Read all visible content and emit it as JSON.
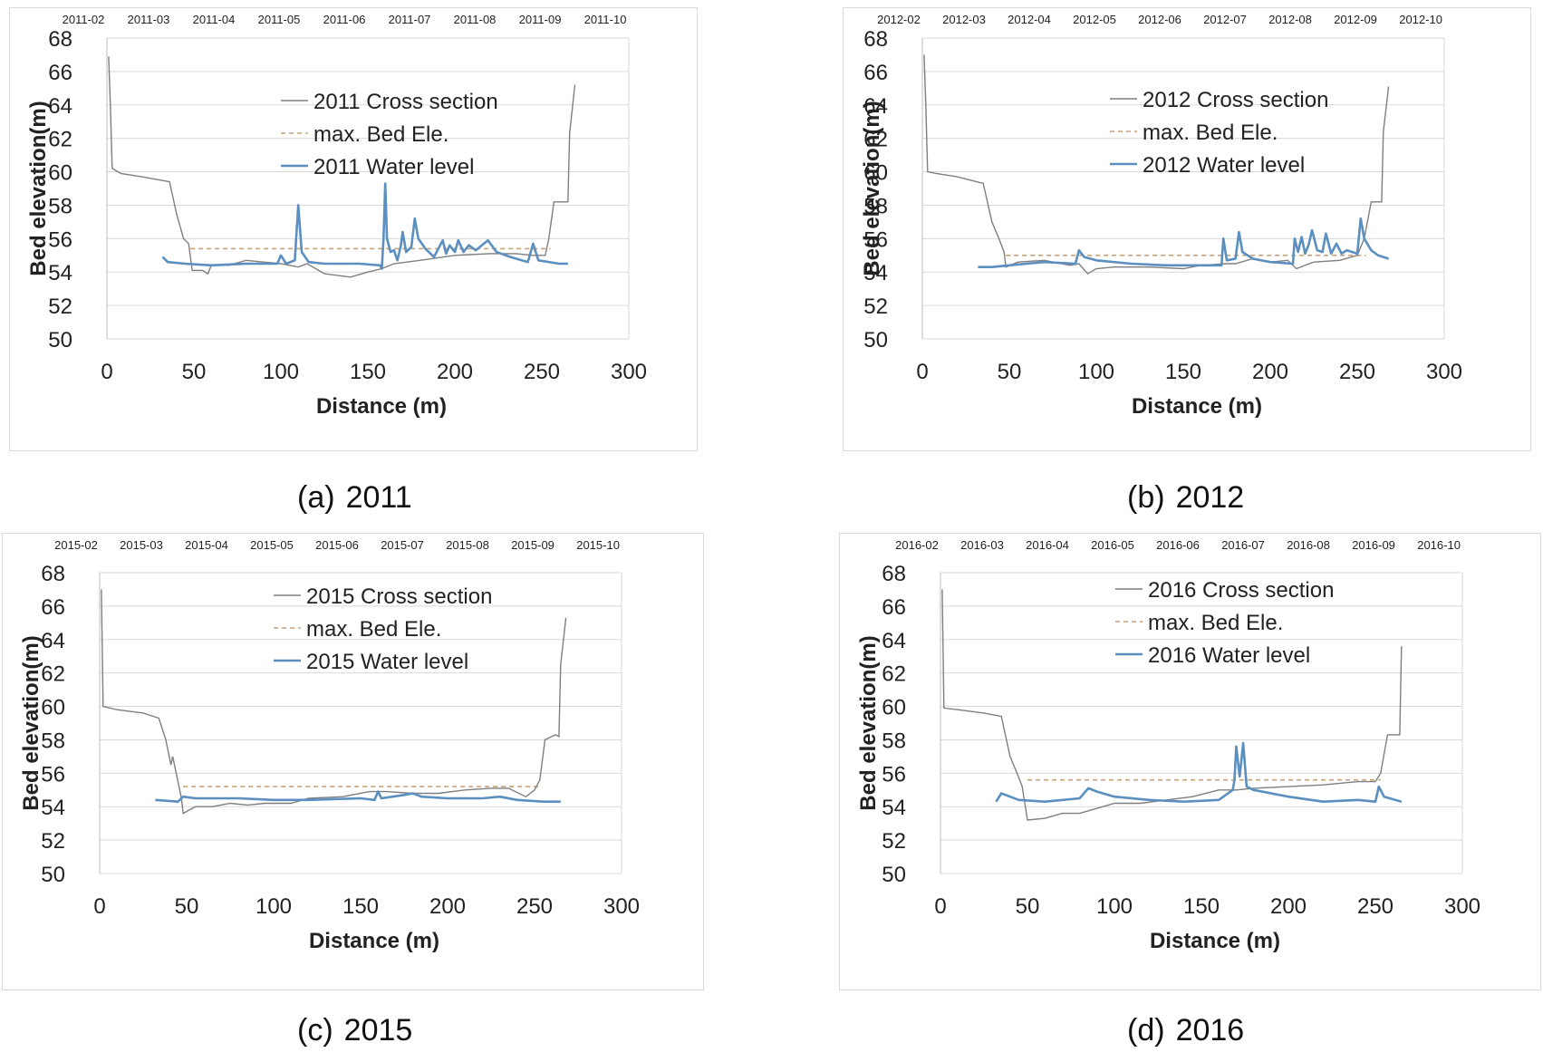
{
  "chart_data": [
    {
      "type": "line",
      "caption_tag": "(a)",
      "caption_year": "2011",
      "xlabel": "Distance (m)",
      "ylabel": "Bed elevation(m)",
      "xlim": [
        0,
        300
      ],
      "ylim": [
        50,
        68
      ],
      "xticks": [
        0,
        50,
        100,
        150,
        200,
        250,
        300
      ],
      "yticks": [
        50,
        52,
        54,
        56,
        58,
        60,
        62,
        64,
        66,
        68
      ],
      "top_axis_labels": [
        "2011-02",
        "2011-03",
        "2011-04",
        "2011-05",
        "2011-06",
        "2011-07",
        "2011-08",
        "2011-09",
        "2011-10"
      ],
      "legend": [
        "2011 Cross section",
        "max. Bed Ele.",
        "2011 Water level"
      ],
      "max_bed": {
        "y": 55.4,
        "x_start": 48,
        "x_end": 255
      },
      "cross_section": [
        [
          1,
          66.9
        ],
        [
          2,
          64
        ],
        [
          3,
          60.2
        ],
        [
          8,
          59.9
        ],
        [
          20,
          59.7
        ],
        [
          36,
          59.4
        ],
        [
          40,
          57.5
        ],
        [
          44,
          56
        ],
        [
          47,
          55.7
        ],
        [
          49,
          54.1
        ],
        [
          55,
          54.1
        ],
        [
          58,
          53.9
        ],
        [
          60,
          54.4
        ],
        [
          70,
          54.4
        ],
        [
          80,
          54.7
        ],
        [
          90,
          54.6
        ],
        [
          100,
          54.5
        ],
        [
          110,
          54.3
        ],
        [
          115,
          54.5
        ],
        [
          120,
          54.2
        ],
        [
          125,
          53.9
        ],
        [
          140,
          53.7
        ],
        [
          150,
          54
        ],
        [
          158,
          54.2
        ],
        [
          165,
          54.5
        ],
        [
          180,
          54.7
        ],
        [
          200,
          55
        ],
        [
          220,
          55.1
        ],
        [
          235,
          55.1
        ],
        [
          245,
          55
        ],
        [
          252,
          55
        ],
        [
          254,
          56
        ],
        [
          257,
          58.2
        ],
        [
          265,
          58.2
        ],
        [
          266,
          62.3
        ],
        [
          269,
          65.2
        ]
      ],
      "water_level": [
        [
          32,
          54.9
        ],
        [
          35,
          54.6
        ],
        [
          45,
          54.5
        ],
        [
          60,
          54.4
        ],
        [
          80,
          54.5
        ],
        [
          98,
          54.5
        ],
        [
          100,
          55
        ],
        [
          103,
          54.5
        ],
        [
          108,
          54.7
        ],
        [
          110,
          58
        ],
        [
          112,
          55.2
        ],
        [
          116,
          54.6
        ],
        [
          125,
          54.5
        ],
        [
          145,
          54.5
        ],
        [
          157,
          54.4
        ],
        [
          158,
          54.2
        ],
        [
          159,
          56
        ],
        [
          160,
          59.3
        ],
        [
          161,
          56
        ],
        [
          163,
          55.2
        ],
        [
          165,
          55.3
        ],
        [
          167,
          54.7
        ],
        [
          169,
          55.6
        ],
        [
          170,
          56.4
        ],
        [
          172,
          55.2
        ],
        [
          175,
          55.5
        ],
        [
          177,
          57.2
        ],
        [
          179,
          56
        ],
        [
          183,
          55.4
        ],
        [
          188,
          54.9
        ],
        [
          193,
          55.9
        ],
        [
          195,
          55.1
        ],
        [
          197,
          55.6
        ],
        [
          200,
          55.2
        ],
        [
          202,
          55.9
        ],
        [
          205,
          55.2
        ],
        [
          208,
          55.6
        ],
        [
          212,
          55.3
        ],
        [
          219,
          55.9
        ],
        [
          224,
          55.2
        ],
        [
          232,
          54.9
        ],
        [
          242,
          54.6
        ],
        [
          245,
          55.7
        ],
        [
          248,
          54.7
        ],
        [
          260,
          54.5
        ],
        [
          265,
          54.5
        ]
      ]
    },
    {
      "type": "line",
      "caption_tag": "(b)",
      "caption_year": "2012",
      "xlabel": "Distance (m)",
      "ylabel": "Bed elevation(m)",
      "xlim": [
        0,
        300
      ],
      "ylim": [
        50,
        68
      ],
      "xticks": [
        0,
        50,
        100,
        150,
        200,
        250,
        300
      ],
      "yticks": [
        50,
        52,
        54,
        56,
        58,
        60,
        62,
        64,
        66,
        68
      ],
      "top_axis_labels": [
        "2012-02",
        "2012-03",
        "2012-04",
        "2012-05",
        "2012-06",
        "2012-07",
        "2012-08",
        "2012-09",
        "2012-10"
      ],
      "legend": [
        "2012 Cross section",
        "max. Bed Ele.",
        "2012 Water level"
      ],
      "max_bed": {
        "y": 55,
        "x_start": 48,
        "x_end": 255
      },
      "cross_section": [
        [
          1,
          67
        ],
        [
          2,
          64
        ],
        [
          3,
          60
        ],
        [
          8,
          59.9
        ],
        [
          20,
          59.7
        ],
        [
          35,
          59.3
        ],
        [
          40,
          57
        ],
        [
          44,
          56
        ],
        [
          47,
          55.2
        ],
        [
          48,
          54.3
        ],
        [
          55,
          54.6
        ],
        [
          70,
          54.7
        ],
        [
          85,
          54.4
        ],
        [
          90,
          54.5
        ],
        [
          95,
          53.9
        ],
        [
          100,
          54.2
        ],
        [
          110,
          54.3
        ],
        [
          130,
          54.3
        ],
        [
          150,
          54.2
        ],
        [
          160,
          54.4
        ],
        [
          175,
          54.5
        ],
        [
          180,
          54.5
        ],
        [
          190,
          54.8
        ],
        [
          200,
          54.6
        ],
        [
          210,
          54.7
        ],
        [
          215,
          54.2
        ],
        [
          225,
          54.6
        ],
        [
          240,
          54.7
        ],
        [
          250,
          55
        ],
        [
          254,
          56
        ],
        [
          258,
          58.2
        ],
        [
          264,
          58.2
        ],
        [
          265,
          62.4
        ],
        [
          268,
          65.1
        ]
      ],
      "water_level": [
        [
          32,
          54.3
        ],
        [
          40,
          54.3
        ],
        [
          50,
          54.4
        ],
        [
          70,
          54.6
        ],
        [
          88,
          54.5
        ],
        [
          90,
          55.3
        ],
        [
          93,
          54.9
        ],
        [
          100,
          54.7
        ],
        [
          120,
          54.5
        ],
        [
          140,
          54.4
        ],
        [
          160,
          54.4
        ],
        [
          172,
          54.4
        ],
        [
          173,
          56
        ],
        [
          175,
          54.7
        ],
        [
          180,
          54.8
        ],
        [
          182,
          56.4
        ],
        [
          184,
          55.2
        ],
        [
          190,
          54.8
        ],
        [
          200,
          54.6
        ],
        [
          213,
          54.5
        ],
        [
          214,
          56
        ],
        [
          216,
          55.2
        ],
        [
          218,
          56.1
        ],
        [
          220,
          55.1
        ],
        [
          222,
          55.6
        ],
        [
          224,
          56.5
        ],
        [
          227,
          55.3
        ],
        [
          230,
          55.2
        ],
        [
          232,
          56.3
        ],
        [
          235,
          55.1
        ],
        [
          238,
          55.7
        ],
        [
          241,
          55.1
        ],
        [
          244,
          55.3
        ],
        [
          250,
          55.1
        ],
        [
          252,
          57.2
        ],
        [
          254,
          56
        ],
        [
          258,
          55.3
        ],
        [
          262,
          55
        ],
        [
          268,
          54.8
        ]
      ]
    },
    {
      "type": "line",
      "caption_tag": "(c)",
      "caption_year": "2015",
      "xlabel": "Distance (m)",
      "ylabel": "Bed elevation(m)",
      "xlim": [
        0,
        300
      ],
      "ylim": [
        50,
        68
      ],
      "xticks": [
        0,
        50,
        100,
        150,
        200,
        250,
        300
      ],
      "yticks": [
        50,
        52,
        54,
        56,
        58,
        60,
        62,
        64,
        66,
        68
      ],
      "top_axis_labels": [
        "2015-02",
        "2015-03",
        "2015-04",
        "2015-05",
        "2015-06",
        "2015-07",
        "2015-08",
        "2015-09",
        "2015-10"
      ],
      "legend": [
        "2015 Cross section",
        "max. Bed Ele.",
        "2015 Water level"
      ],
      "max_bed": {
        "y": 55.2,
        "x_start": 48,
        "x_end": 253
      },
      "cross_section": [
        [
          1,
          67
        ],
        [
          2,
          60
        ],
        [
          10,
          59.8
        ],
        [
          25,
          59.6
        ],
        [
          34,
          59.3
        ],
        [
          38,
          58
        ],
        [
          41,
          56.5
        ],
        [
          42,
          57
        ],
        [
          44,
          56
        ],
        [
          47,
          54.5
        ],
        [
          48,
          53.6
        ],
        [
          55,
          54
        ],
        [
          65,
          54
        ],
        [
          75,
          54.2
        ],
        [
          85,
          54.1
        ],
        [
          95,
          54.2
        ],
        [
          110,
          54.2
        ],
        [
          120,
          54.5
        ],
        [
          140,
          54.6
        ],
        [
          155,
          54.9
        ],
        [
          165,
          54.9
        ],
        [
          180,
          54.8
        ],
        [
          195,
          54.8
        ],
        [
          210,
          55
        ],
        [
          225,
          55.1
        ],
        [
          235,
          55.1
        ],
        [
          245,
          54.6
        ],
        [
          250,
          55
        ],
        [
          253,
          55.6
        ],
        [
          256,
          58
        ],
        [
          262,
          58.3
        ],
        [
          264,
          58.2
        ],
        [
          265,
          62.5
        ],
        [
          268,
          65.3
        ]
      ],
      "water_level": [
        [
          32,
          54.4
        ],
        [
          45,
          54.3
        ],
        [
          48,
          54.6
        ],
        [
          55,
          54.5
        ],
        [
          80,
          54.5
        ],
        [
          100,
          54.4
        ],
        [
          120,
          54.4
        ],
        [
          150,
          54.5
        ],
        [
          158,
          54.4
        ],
        [
          160,
          54.9
        ],
        [
          162,
          54.5
        ],
        [
          175,
          54.7
        ],
        [
          180,
          54.8
        ],
        [
          185,
          54.6
        ],
        [
          200,
          54.5
        ],
        [
          220,
          54.5
        ],
        [
          230,
          54.6
        ],
        [
          240,
          54.4
        ],
        [
          255,
          54.3
        ],
        [
          265,
          54.3
        ]
      ]
    },
    {
      "type": "line",
      "caption_tag": "(d)",
      "caption_year": "2016",
      "xlabel": "Distance (m)",
      "ylabel": "Bed elevation(m)",
      "xlim": [
        0,
        300
      ],
      "ylim": [
        50,
        68
      ],
      "xticks": [
        0,
        50,
        100,
        150,
        200,
        250,
        300
      ],
      "yticks": [
        50,
        52,
        54,
        56,
        58,
        60,
        62,
        64,
        66,
        68
      ],
      "top_axis_labels": [
        "2016-02",
        "2016-03",
        "2016-04",
        "2016-05",
        "2016-06",
        "2016-07",
        "2016-08",
        "2016-09",
        "2016-10"
      ],
      "legend": [
        "2016 Cross section",
        "max. Bed Ele.",
        "2016 Water level"
      ],
      "max_bed": {
        "y": 55.6,
        "x_start": 50,
        "x_end": 253
      },
      "cross_section": [
        [
          1,
          67
        ],
        [
          2,
          59.9
        ],
        [
          10,
          59.8
        ],
        [
          25,
          59.6
        ],
        [
          35,
          59.4
        ],
        [
          40,
          57
        ],
        [
          44,
          56
        ],
        [
          47,
          55.2
        ],
        [
          50,
          53.2
        ],
        [
          60,
          53.3
        ],
        [
          70,
          53.6
        ],
        [
          80,
          53.6
        ],
        [
          90,
          53.9
        ],
        [
          100,
          54.2
        ],
        [
          115,
          54.2
        ],
        [
          130,
          54.4
        ],
        [
          145,
          54.6
        ],
        [
          160,
          55
        ],
        [
          170,
          55
        ],
        [
          180,
          55.1
        ],
        [
          200,
          55.2
        ],
        [
          220,
          55.3
        ],
        [
          240,
          55.5
        ],
        [
          250,
          55.5
        ],
        [
          253,
          56
        ],
        [
          257,
          58.3
        ],
        [
          264,
          58.3
        ],
        [
          265,
          63.6
        ]
      ],
      "water_level": [
        [
          32,
          54.3
        ],
        [
          35,
          54.8
        ],
        [
          45,
          54.4
        ],
        [
          60,
          54.3
        ],
        [
          80,
          54.5
        ],
        [
          85,
          55.1
        ],
        [
          90,
          54.9
        ],
        [
          100,
          54.6
        ],
        [
          120,
          54.4
        ],
        [
          140,
          54.3
        ],
        [
          160,
          54.4
        ],
        [
          168,
          55
        ],
        [
          169,
          55.6
        ],
        [
          170,
          57.6
        ],
        [
          172,
          55.8
        ],
        [
          174,
          57.8
        ],
        [
          176,
          55.2
        ],
        [
          180,
          55
        ],
        [
          190,
          54.8
        ],
        [
          200,
          54.6
        ],
        [
          220,
          54.3
        ],
        [
          240,
          54.4
        ],
        [
          250,
          54.3
        ],
        [
          252,
          55.2
        ],
        [
          255,
          54.6
        ],
        [
          265,
          54.3
        ]
      ]
    }
  ]
}
